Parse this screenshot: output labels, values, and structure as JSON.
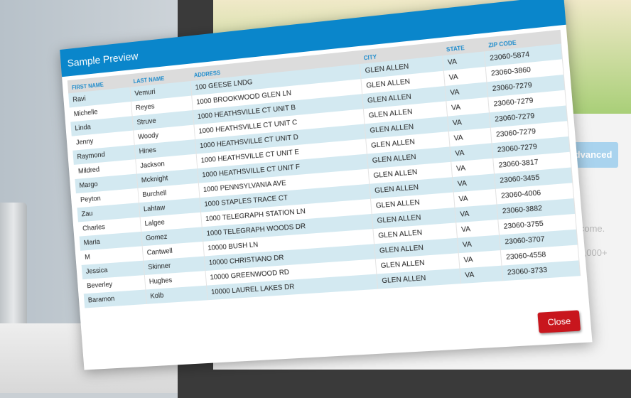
{
  "background": {
    "advanced_label": "+ Advanced",
    "income_text": "Income.",
    "amount_text": "000,000+"
  },
  "modal": {
    "title": "Sample Preview",
    "columns": [
      "FIRST NAME",
      "LAST NAME",
      "ADDRESS",
      "CITY",
      "STATE",
      "ZIP CODE"
    ],
    "rows": [
      [
        "Ravi",
        "Vemuri",
        "100 GEESE LNDG",
        "GLEN ALLEN",
        "VA",
        "23060-5874"
      ],
      [
        "Michelle",
        "Reyes",
        "1000 BROOKWOOD GLEN LN",
        "GLEN ALLEN",
        "VA",
        "23060-3860"
      ],
      [
        "Linda",
        "Struve",
        "1000 HEATHSVILLE CT UNIT B",
        "GLEN ALLEN",
        "VA",
        "23060-7279"
      ],
      [
        "Jenny",
        "Woody",
        "1000 HEATHSVILLE CT UNIT C",
        "GLEN ALLEN",
        "VA",
        "23060-7279"
      ],
      [
        "Raymond",
        "Hines",
        "1000 HEATHSVILLE CT UNIT D",
        "GLEN ALLEN",
        "VA",
        "23060-7279"
      ],
      [
        "Mildred",
        "Jackson",
        "1000 HEATHSVILLE CT UNIT E",
        "GLEN ALLEN",
        "VA",
        "23060-7279"
      ],
      [
        "Margo",
        "Mcknight",
        "1000 HEATHSVILLE CT UNIT F",
        "GLEN ALLEN",
        "VA",
        "23060-7279"
      ],
      [
        "Peyton",
        "Burchell",
        "1000 PENNSYLVANIA AVE",
        "GLEN ALLEN",
        "VA",
        "23060-3817"
      ],
      [
        "Zau",
        "Lahtaw",
        "1000 STAPLES TRACE CT",
        "GLEN ALLEN",
        "VA",
        "23060-3455"
      ],
      [
        "Charles",
        "Lalgee",
        "1000 TELEGRAPH STATION LN",
        "GLEN ALLEN",
        "VA",
        "23060-4006"
      ],
      [
        "Maria",
        "Gomez",
        "1000 TELEGRAPH WOODS DR",
        "GLEN ALLEN",
        "VA",
        "23060-3882"
      ],
      [
        "M",
        "Cantwell",
        "10000 BUSH LN",
        "GLEN ALLEN",
        "VA",
        "23060-3755"
      ],
      [
        "Jessica",
        "Skinner",
        "10000 CHRISTIANO DR",
        "GLEN ALLEN",
        "VA",
        "23060-3707"
      ],
      [
        "Beverley",
        "Hughes",
        "10000 GREENWOOD RD",
        "GLEN ALLEN",
        "VA",
        "23060-4558"
      ],
      [
        "Baramon",
        "Kolb",
        "10000 LAUREL LAKES DR",
        "GLEN ALLEN",
        "VA",
        "23060-3733"
      ]
    ],
    "close_label": "Close"
  },
  "colors": {
    "header": "#0a86cb",
    "row_alt": "#d3e9f1",
    "close": "#c8161d",
    "column_header_text": "#1f8ccc"
  }
}
